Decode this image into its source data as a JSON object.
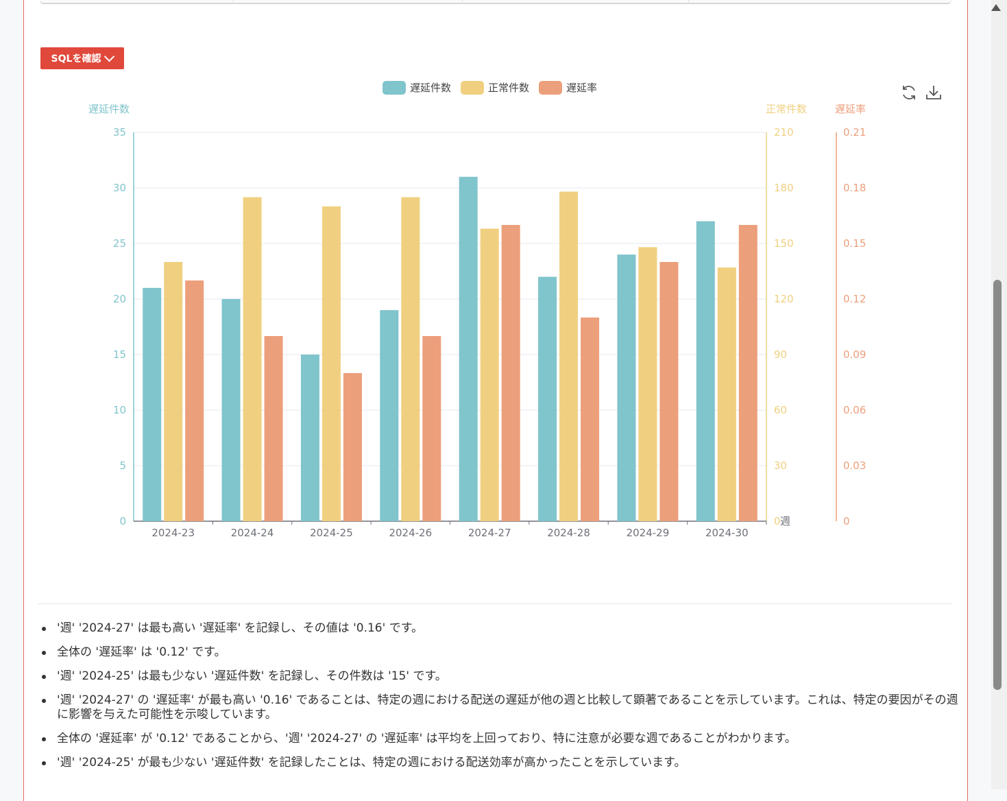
{
  "toolbar": {
    "sql_button_label": "SQLを確認"
  },
  "legend": [
    {
      "label": "遅延件数",
      "color": "#80c4cc"
    },
    {
      "label": "正常件数",
      "color": "#f0d080"
    },
    {
      "label": "遅延率",
      "color": "#ec9f7b"
    }
  ],
  "icons": {
    "refresh": "refresh-icon",
    "download": "download-icon"
  },
  "chart_data": {
    "type": "bar",
    "x_label": "週",
    "categories": [
      "2024-23",
      "2024-24",
      "2024-25",
      "2024-26",
      "2024-27",
      "2024-28",
      "2024-29",
      "2024-30"
    ],
    "series": [
      {
        "name": "遅延件数",
        "axis": "left",
        "color": "#80c4cc",
        "values": [
          21,
          20,
          15,
          19,
          31,
          22,
          24,
          27
        ]
      },
      {
        "name": "正常件数",
        "axis": "right1",
        "color": "#f0d080",
        "values": [
          140,
          175,
          170,
          175,
          158,
          178,
          148,
          137
        ]
      },
      {
        "name": "遅延率",
        "axis": "right2",
        "color": "#ec9f7b",
        "values": [
          0.13,
          0.1,
          0.08,
          0.1,
          0.16,
          0.11,
          0.14,
          0.16
        ]
      }
    ],
    "axes": {
      "left": {
        "title": "遅延件数",
        "ylim": [
          0,
          35
        ],
        "ticks": [
          "0",
          "5",
          "10",
          "15",
          "20",
          "25",
          "30",
          "35"
        ],
        "color": "#80c4cc"
      },
      "right1": {
        "title": "正常件数",
        "ylim": [
          0,
          210
        ],
        "ticks": [
          "0",
          "30",
          "60",
          "90",
          "120",
          "150",
          "180",
          "210"
        ],
        "color": "#f0d080"
      },
      "right2": {
        "title": "遅延率",
        "ylim": [
          0,
          0.21
        ],
        "ticks": [
          "0",
          "0.03",
          "0.06",
          "0.09",
          "0.12",
          "0.15",
          "0.18",
          "0.21"
        ],
        "color": "#ec9f7b"
      }
    },
    "grid": true,
    "legend_position": "top-center"
  },
  "insights": [
    "'週' '2024-27' は最も高い '遅延率' を記録し、その値は '0.16' です。",
    "全体の '遅延率' は '0.12' です。",
    "'週' '2024-25' は最も少ない '遅延件数' を記録し、その件数は '15' です。",
    "'週' '2024-27' の '遅延率' が最も高い '0.16' であることは、特定の週における配送の遅延が他の週と比較して顕著であることを示しています。これは、特定の要因がその週に影響を与えた可能性を示唆しています。",
    "全体の '遅延率' が '0.12' であることから、'週' '2024-27' の '遅延率' は平均を上回っており、特に注意が必要な週であることがわかります。",
    "'週' '2024-25' が最も少ない '遅延件数' を記録したことは、特定の週における配送効率が高かったことを示しています。"
  ]
}
